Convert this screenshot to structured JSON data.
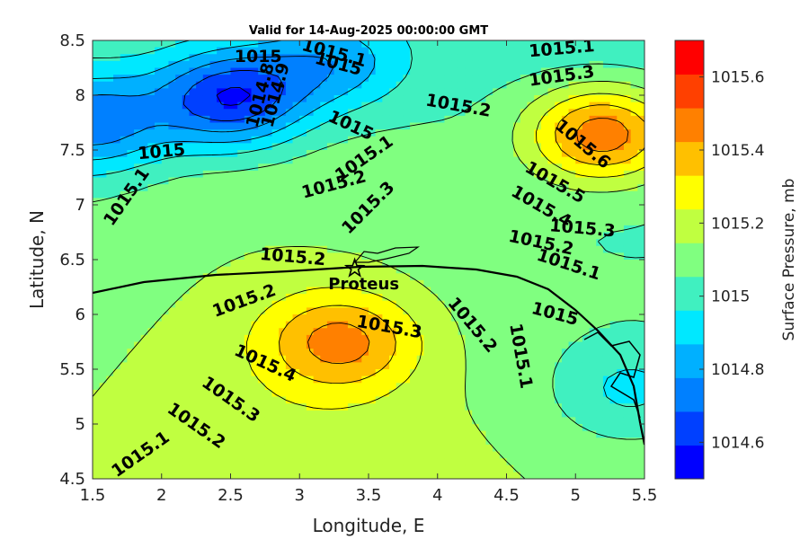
{
  "chart_data": {
    "type": "heatmap",
    "title": "Valid for 14-Aug-2025 00:00:00 GMT",
    "xlabel": "Longitude, E",
    "ylabel": "Latitude, N",
    "xlim": [
      1.5,
      5.5
    ],
    "ylim": [
      4.5,
      8.5
    ],
    "x_ticks": [
      "1.5",
      "2",
      "2.5",
      "3",
      "3.5",
      "4",
      "4.5",
      "5",
      "5.5"
    ],
    "y_ticks": [
      "4.5",
      "5",
      "5.5",
      "6",
      "6.5",
      "7",
      "7.5",
      "8",
      "8.5"
    ],
    "colorbar": {
      "label": "Surface Pressure, mb",
      "range": [
        1014.5,
        1015.7
      ],
      "step": 0.1,
      "ticks": [
        "1014.6",
        "1014.8",
        "1015",
        "1015.2",
        "1015.4",
        "1015.6"
      ],
      "colors": [
        "#0000ff",
        "#0040ff",
        "#0080ff",
        "#00b0ff",
        "#00e8ff",
        "#40f0c0",
        "#80ff80",
        "#c0ff40",
        "#ffff00",
        "#ffc000",
        "#ff8000",
        "#ff4000",
        "#ff0000"
      ]
    },
    "station": {
      "name": "Proteus",
      "lon": 3.4,
      "lat": 6.42
    },
    "pressure_centers": [
      {
        "lon": 2.5,
        "lat": 7.97,
        "value": 1014.6
      },
      {
        "lon": 1.5,
        "lat": 7.75,
        "value": 1014.75
      },
      {
        "lon": 3.25,
        "lat": 8.3,
        "value": 1014.85
      },
      {
        "lon": 5.2,
        "lat": 7.65,
        "value": 1015.62
      },
      {
        "lon": 3.3,
        "lat": 5.75,
        "value": 1015.45
      },
      {
        "lon": 5.4,
        "lat": 5.3,
        "value": 1014.95
      }
    ],
    "contour_labels": [
      {
        "text": "1015.1",
        "lon": 4.9,
        "lat": 8.42,
        "rotate": -5
      },
      {
        "text": "1015.3",
        "lon": 4.9,
        "lat": 8.17,
        "rotate": -8
      },
      {
        "text": "1015.2",
        "lon": 4.15,
        "lat": 7.9,
        "rotate": 10
      },
      {
        "text": "1015.6",
        "lon": 5.05,
        "lat": 7.55,
        "rotate": 40
      },
      {
        "text": "1015.5",
        "lon": 4.85,
        "lat": 7.2,
        "rotate": 30
      },
      {
        "text": "1015.4",
        "lon": 4.75,
        "lat": 6.98,
        "rotate": 30
      },
      {
        "text": "1015.3",
        "lon": 5.05,
        "lat": 6.78,
        "rotate": 5
      },
      {
        "text": "1015.2",
        "lon": 4.75,
        "lat": 6.65,
        "rotate": 12
      },
      {
        "text": "1015.1",
        "lon": 4.95,
        "lat": 6.45,
        "rotate": 18
      },
      {
        "text": "1015",
        "lon": 2.7,
        "lat": 8.35,
        "rotate": 0
      },
      {
        "text": "1015.1",
        "lon": 3.25,
        "lat": 8.38,
        "rotate": 15
      },
      {
        "text": "1015",
        "lon": 3.28,
        "lat": 8.28,
        "rotate": 15
      },
      {
        "text": "1014.8",
        "lon": 2.72,
        "lat": 8.0,
        "rotate": -75
      },
      {
        "text": "1014.9",
        "lon": 2.83,
        "lat": 8.0,
        "rotate": -75
      },
      {
        "text": "1015",
        "lon": 3.37,
        "lat": 7.72,
        "rotate": 25
      },
      {
        "text": "1015",
        "lon": 2.0,
        "lat": 7.48,
        "rotate": -5
      },
      {
        "text": "1015.1",
        "lon": 3.47,
        "lat": 7.42,
        "rotate": -35
      },
      {
        "text": "1015.2",
        "lon": 3.25,
        "lat": 7.18,
        "rotate": -15
      },
      {
        "text": "1015.3",
        "lon": 3.5,
        "lat": 6.97,
        "rotate": -45
      },
      {
        "text": "1015.1",
        "lon": 1.75,
        "lat": 7.07,
        "rotate": -55
      },
      {
        "text": "1015.2",
        "lon": 2.95,
        "lat": 6.52,
        "rotate": 5
      },
      {
        "text": "1015.2",
        "lon": 2.6,
        "lat": 6.12,
        "rotate": -20
      },
      {
        "text": "1015.3",
        "lon": 3.65,
        "lat": 5.88,
        "rotate": 10
      },
      {
        "text": "1015.4",
        "lon": 2.75,
        "lat": 5.55,
        "rotate": 25
      },
      {
        "text": "1015.3",
        "lon": 2.5,
        "lat": 5.22,
        "rotate": 35
      },
      {
        "text": "1015.2",
        "lon": 2.25,
        "lat": 4.98,
        "rotate": 35
      },
      {
        "text": "1015.1",
        "lon": 1.85,
        "lat": 4.72,
        "rotate": -35
      },
      {
        "text": "1015.2",
        "lon": 4.25,
        "lat": 5.9,
        "rotate": 50
      },
      {
        "text": "1015.1",
        "lon": 4.6,
        "lat": 5.62,
        "rotate": 80
      },
      {
        "text": "1015",
        "lon": 4.85,
        "lat": 6.0,
        "rotate": 15
      }
    ]
  }
}
